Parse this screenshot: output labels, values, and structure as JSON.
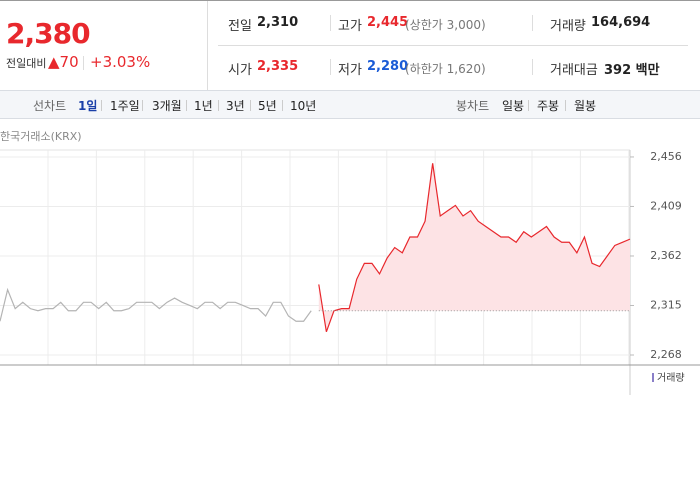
{
  "quote": {
    "price": "2,380",
    "change_label": "전일대비",
    "change": "▲70",
    "change_pct": "+3.03%"
  },
  "stats": [
    {
      "label": "전일",
      "value": "2,310"
    },
    {
      "label": "고가",
      "value": "2,445",
      "note": "(상한가 3,000)"
    },
    {
      "label": "거래량",
      "value": "164,694"
    },
    {
      "label": "시가",
      "value": "2,335"
    },
    {
      "label": "저가",
      "value": "2,280",
      "note": "(하한가 1,620)"
    },
    {
      "label": "거래대금",
      "value": "392 백만"
    }
  ],
  "tabs": {
    "line_label": "선차트",
    "line_periods": [
      "1일",
      "1주일",
      "3개월",
      "1년",
      "3년",
      "5년",
      "10년"
    ],
    "selected": 0,
    "candle_label": "봉차트",
    "candle_periods": [
      "일봉",
      "주봉",
      "월봉"
    ]
  },
  "chart": {
    "type": "line",
    "source": "한국거래소(KRX)",
    "volume_label": "거래량",
    "ylim": [
      2258.5,
      2462.6
    ],
    "yticks": [
      {
        "value": 2268,
        "label": "2,268"
      },
      {
        "value": 2315,
        "label": "2,315"
      },
      {
        "value": 2362,
        "label": "2,362"
      },
      {
        "value": 2409,
        "label": "2,409"
      },
      {
        "value": 2456,
        "label": "2,456"
      }
    ],
    "reference": 2310,
    "series": [
      {
        "color": "#b4b4b4",
        "values": [
          2300,
          2330,
          2312,
          2318,
          2312,
          2310,
          2312,
          2312,
          2318,
          2310,
          2310,
          2318,
          2318,
          2312,
          2318,
          2310,
          2310,
          2312,
          2318,
          2318,
          2318,
          2312,
          2318,
          2322,
          2318,
          2315,
          2312,
          2318,
          2318,
          2312,
          2318,
          2318,
          2315,
          2312,
          2312,
          2305,
          2318,
          2318,
          2305,
          2300,
          2300,
          2310,
          null,
          null,
          null,
          null,
          null,
          null,
          null,
          null,
          null,
          null,
          null,
          null,
          null,
          null,
          null,
          null,
          null,
          null,
          null,
          null,
          null,
          null,
          null,
          null,
          null,
          null,
          null,
          null,
          null,
          null,
          null,
          null,
          null,
          null,
          null,
          null,
          null,
          null,
          null,
          null,
          null,
          null
        ]
      },
      {
        "color": "#e8282d",
        "fill": "#fde3e5",
        "values": [
          null,
          null,
          null,
          null,
          null,
          null,
          null,
          null,
          null,
          null,
          null,
          null,
          null,
          null,
          null,
          null,
          null,
          null,
          null,
          null,
          null,
          null,
          null,
          null,
          null,
          null,
          null,
          null,
          null,
          null,
          null,
          null,
          null,
          null,
          null,
          null,
          null,
          null,
          null,
          null,
          null,
          null,
          2335,
          2290,
          2310,
          2312,
          2312,
          2340,
          2355,
          2355,
          2345,
          2360,
          2370,
          2365,
          2380,
          2380,
          2395,
          2450,
          2400,
          2405,
          2410,
          2400,
          2405,
          2395,
          2390,
          2385,
          2380,
          2380,
          2375,
          2385,
          2380,
          2385,
          2390,
          2380,
          2375,
          2375,
          2365,
          2380,
          2355,
          2352,
          2362,
          2372,
          2375,
          2378
        ]
      }
    ]
  }
}
